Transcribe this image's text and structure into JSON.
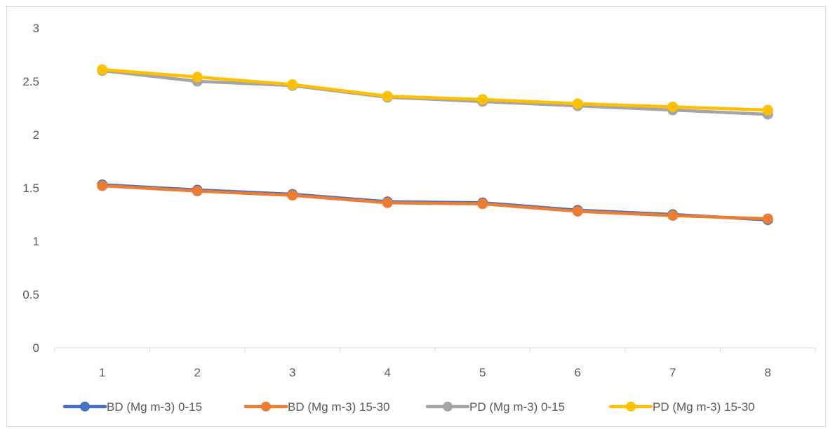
{
  "chart_data": {
    "type": "line",
    "title": "",
    "xlabel": "",
    "ylabel": "",
    "categories": [
      "1",
      "2",
      "3",
      "4",
      "5",
      "6",
      "7",
      "8"
    ],
    "ylim": [
      0,
      3
    ],
    "yticks": [
      "0",
      "0.5",
      "1",
      "1.5",
      "2",
      "2.5",
      "3"
    ],
    "grid": false,
    "legend": "bottom",
    "series": [
      {
        "name": "BD (Mg m-3) 0-15",
        "color": "#4472c4",
        "values": [
          1.53,
          1.48,
          1.44,
          1.37,
          1.36,
          1.29,
          1.25,
          1.2
        ]
      },
      {
        "name": "BD (Mg m-3) 15-30",
        "color": "#ed7d31",
        "values": [
          1.52,
          1.47,
          1.43,
          1.36,
          1.35,
          1.28,
          1.24,
          1.21
        ]
      },
      {
        "name": "PD (Mg m-3) 0-15",
        "color": "#a5a5a5",
        "values": [
          2.6,
          2.5,
          2.46,
          2.35,
          2.31,
          2.27,
          2.23,
          2.19
        ]
      },
      {
        "name": "PD (Mg m-3) 15-30",
        "color": "#ffc000",
        "values": [
          2.61,
          2.54,
          2.47,
          2.36,
          2.33,
          2.29,
          2.26,
          2.23
        ]
      }
    ]
  }
}
